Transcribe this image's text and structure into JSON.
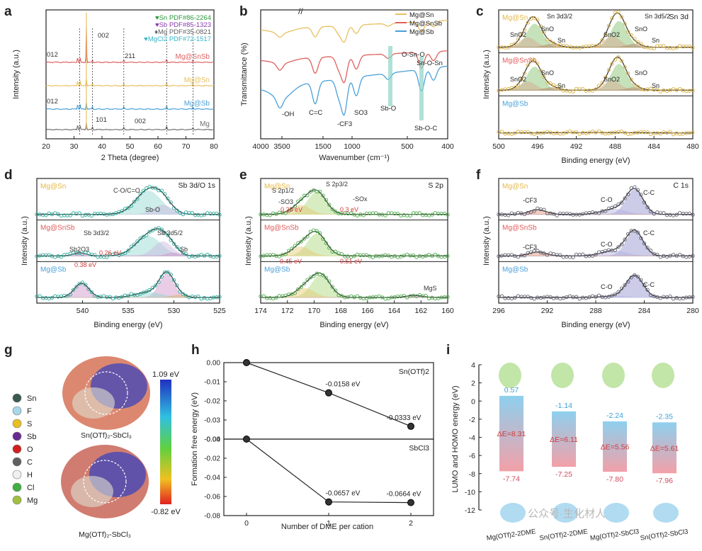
{
  "chart_data": [
    {
      "panel": "a",
      "type": "line",
      "xlabel": "2 Theta (degree)",
      "ylabel": "Intensity (a.u.)",
      "xlim": [
        20,
        80
      ],
      "xticks": [
        20,
        30,
        40,
        50,
        60,
        70,
        80
      ],
      "references": [
        {
          "name": "Sn PDF#86-2264",
          "color": "#2a9a3a",
          "symbol": "♥"
        },
        {
          "name": "Sb PDF#85-1323",
          "color": "#8a3ab0",
          "symbol": "♥"
        },
        {
          "name": "Mg PDF#35-0821",
          "color": "#606060",
          "symbol": "♦"
        },
        {
          "name": "MgCl2 PDF#72-1517",
          "color": "#35b5c8",
          "symbol": "♥"
        }
      ],
      "series": [
        {
          "name": "Mg@SnSb",
          "color": "#e06060"
        },
        {
          "name": "Mg@Sn",
          "color": "#e8c060"
        },
        {
          "name": "Mg@Sb",
          "color": "#4aa0d8"
        },
        {
          "name": "Mg",
          "color": "#707070"
        }
      ],
      "annotations": [
        "002",
        "012",
        "211",
        "012",
        "101",
        "002"
      ]
    },
    {
      "panel": "b",
      "type": "line",
      "xlabel": "Wavenumber (cm⁻¹)",
      "ylabel": "Transmittance (%)",
      "xticks": [
        4000,
        3500,
        1500,
        1000,
        500,
        400
      ],
      "series": [
        {
          "name": "Mg@Sn",
          "color": "#e8c060"
        },
        {
          "name": "Mg@SnSb",
          "color": "#e06060"
        },
        {
          "name": "Mg@Sb",
          "color": "#4aa0d8"
        }
      ],
      "annotations": [
        "-OH",
        "C=C",
        "-CF3",
        "SO3",
        "Sb-O",
        "O-Sn-O",
        "Sn-O-Sn",
        "Sb-O-C"
      ]
    },
    {
      "panel": "c",
      "type": "line",
      "title": "Sn 3d",
      "xlabel": "Binding energy (eV)",
      "ylabel": "Intensity (a.u.)",
      "xlim": [
        500,
        480
      ],
      "xticks": [
        500,
        496,
        492,
        488,
        484,
        480
      ],
      "series": [
        "Mg@Sn",
        "Mg@SnSb",
        "Mg@Sb"
      ],
      "peaks": [
        {
          "label": "SnO",
          "x": 495.8
        },
        {
          "label": "SnO2",
          "x": 496.4
        },
        {
          "label": "Sn",
          "x": 494.0
        },
        {
          "label": "SnO",
          "x": 487.3
        },
        {
          "label": "SnO2",
          "x": 488.0
        },
        {
          "label": "Sn",
          "x": 485.5
        }
      ],
      "annotations": [
        "Sn 3d3/2",
        "Sn 3d5/2"
      ]
    },
    {
      "panel": "d",
      "type": "line",
      "title": "Sb 3d/O 1s",
      "xlabel": "Binding energy (eV)",
      "ylabel": "Intensity (a.u.)",
      "xlim": [
        545,
        525
      ],
      "xticks": [
        540,
        535,
        530,
        525
      ],
      "series": [
        "Mg@Sn",
        "Mg@SnSb",
        "Mg@Sb"
      ],
      "annotations": [
        "C-O/C=O",
        "Sb-O",
        "Sb 3d3/2",
        "Sb 3d5/2",
        "Sb2O3",
        "Sb",
        "0.26 eV",
        "0.38 eV"
      ]
    },
    {
      "panel": "e",
      "type": "line",
      "title": "S 2p",
      "xlabel": "Binding energy (eV)",
      "ylabel": "Intensity (a.u.)",
      "xlim": [
        174,
        160
      ],
      "xticks": [
        174,
        172,
        170,
        168,
        166,
        164,
        162,
        160
      ],
      "series": [
        "Mg@Sn",
        "Mg@SnSb",
        "Mg@Sb"
      ],
      "annotations": [
        "S 2p1/2",
        "S 2p3/2",
        "-SO3",
        "-SOx",
        "0.28 eV",
        "0.3 eV",
        "0.45 eV",
        "0.51 eV",
        "MgS"
      ]
    },
    {
      "panel": "f",
      "type": "line",
      "title": "C 1s",
      "xlabel": "Binding energy (eV)",
      "ylabel": "Intensity (a.u.)",
      "xlim": [
        296,
        280
      ],
      "xticks": [
        296,
        292,
        288,
        284,
        280
      ],
      "series": [
        "Mg@Sn",
        "Mg@SnSb",
        "Mg@Sb"
      ],
      "annotations": [
        "-CF3",
        "C-O",
        "C-C"
      ]
    },
    {
      "panel": "h",
      "type": "line",
      "xlabel": "Number of DME per cation",
      "ylabel": "Formation free energy (eV)",
      "xticks": [
        0,
        1,
        2
      ],
      "series": [
        {
          "name": "Sn(OTf)2",
          "x": [
            0,
            1,
            2
          ],
          "values": [
            0,
            -0.0158,
            -0.0333
          ],
          "labels": [
            "-0.0158 eV",
            "-0.0333 eV"
          ],
          "ylim": [
            -0.04,
            0.0
          ],
          "yticks": [
            0.0,
            -0.01,
            -0.02,
            -0.03,
            -0.04
          ]
        },
        {
          "name": "SbCl3",
          "x": [
            0,
            1,
            2
          ],
          "values": [
            0,
            -0.0657,
            -0.0664
          ],
          "labels": [
            "-0.0657 eV",
            "-0.0664 eV"
          ],
          "ylim": [
            -0.08,
            0.0
          ],
          "yticks": [
            0.0,
            -0.02,
            -0.04,
            -0.06,
            -0.08
          ]
        }
      ]
    },
    {
      "panel": "i",
      "type": "bar",
      "ylabel": "LUMO and HOMO energy (eV)",
      "ylim": [
        -12,
        4
      ],
      "yticks": [
        4,
        2,
        0,
        -2,
        -4,
        -6,
        -8,
        -10,
        -12
      ],
      "categories": [
        "Mg(OTf)2-2DME",
        "Sn(OTf)2-2DME",
        "Mg(OTf)2-SbCl3",
        "Sn(OTf)2-SbCl3"
      ],
      "lumo": [
        0.57,
        -1.14,
        -2.24,
        -2.35
      ],
      "homo": [
        -7.74,
        -7.25,
        -7.8,
        -7.96
      ],
      "gap": [
        "ΔE=8.31",
        "ΔE=6.11",
        "ΔE=5.56",
        "ΔE=5.61"
      ],
      "lumo_labels": [
        "0.57",
        "-1.14",
        "-2.24",
        "-2.35"
      ],
      "homo_labels": [
        "-7.74",
        "-7.25",
        "-7.80",
        "-7.96"
      ]
    }
  ],
  "panel_labels": [
    "a",
    "b",
    "c",
    "d",
    "e",
    "f",
    "g",
    "h",
    "i"
  ],
  "panel_g": {
    "legend": [
      "Sn",
      "F",
      "S",
      "Sb",
      "O",
      "C",
      "H",
      "Cl",
      "Mg"
    ],
    "legend_colors": [
      "#3a5a50",
      "#a8d8e8",
      "#e8c020",
      "#6a2a90",
      "#d02020",
      "#606060",
      "#f0f0f0",
      "#40b040",
      "#a0c040"
    ],
    "scale_max": "1.09 eV",
    "scale_min": "-0.82 eV",
    "caption_top": "Sn(OTf)₂-SbCl₃",
    "caption_bottom": "Mg(OTf)₂-SbCl₃"
  },
  "watermark": "公众号·生化材人"
}
